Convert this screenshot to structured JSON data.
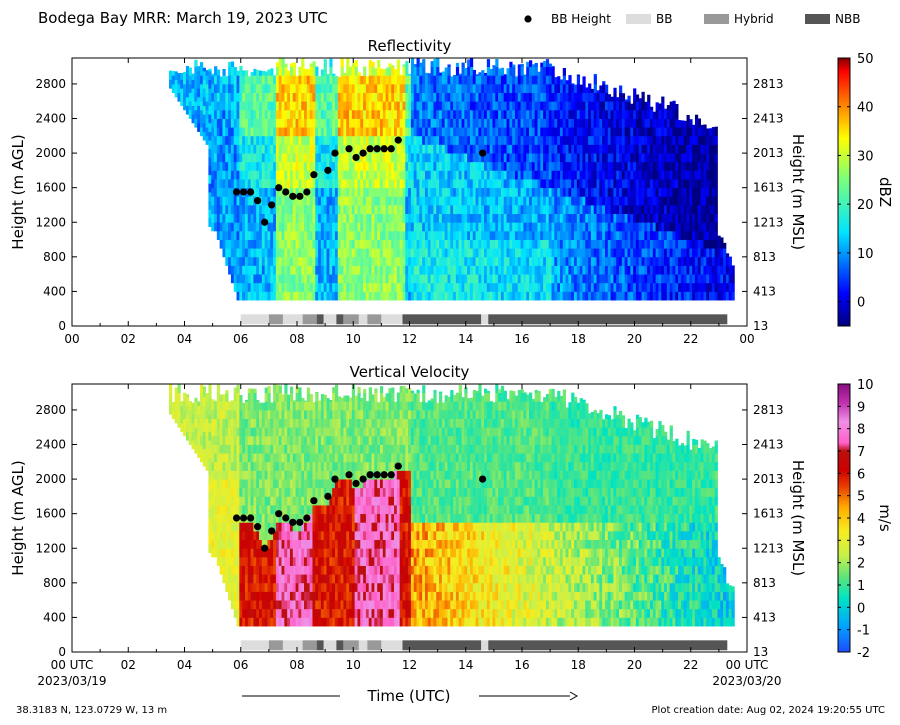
{
  "figure": {
    "title": "Bodega Bay MRR:  March 19, 2023 UTC",
    "location": "38.3183 N, 123.0729 W, 13 m",
    "creation": "Plot creation date: Aug 02, 2024 19:20:55 UTC",
    "xlabel": "Time (UTC)",
    "x_start_time": "00 UTC",
    "x_start_date": "2023/03/19",
    "x_end_time": "00 UTC",
    "x_end_date": "2023/03/20",
    "legend": [
      {
        "label": "BB Height",
        "kind": "marker",
        "color": "#000000"
      },
      {
        "label": "BB",
        "kind": "patch",
        "color": "#dddddd"
      },
      {
        "label": "Hybrid",
        "kind": "patch",
        "color": "#999999"
      },
      {
        "label": "NBB",
        "kind": "patch",
        "color": "#555555"
      }
    ]
  },
  "chart_data": [
    {
      "type": "heatmap",
      "title": "Reflectivity",
      "ylabel": "Height (m AGL)",
      "ylabel_right": "Height (m MSL)",
      "xlim": [
        0,
        24
      ],
      "ylim": [
        0,
        3100
      ],
      "xticks": [
        "00",
        "02",
        "04",
        "06",
        "08",
        "10",
        "12",
        "14",
        "16",
        "18",
        "20",
        "22",
        "00"
      ],
      "yticks": [
        0,
        400,
        800,
        1200,
        1600,
        2000,
        2400,
        2800
      ],
      "yticks_right": [
        "13",
        "413",
        "813",
        "1213",
        "1613",
        "2013",
        "2413",
        "2813"
      ],
      "colorbar": {
        "label": "dBZ",
        "range": [
          -5,
          50
        ],
        "ticks": [
          0,
          10,
          20,
          30,
          40,
          50
        ],
        "colormap": "jet"
      }
    },
    {
      "type": "heatmap",
      "title": "Vertical Velocity",
      "ylabel": "Height (m AGL)",
      "ylabel_right": "Height (m MSL)",
      "xlim": [
        0,
        24
      ],
      "ylim": [
        0,
        3100
      ],
      "xticks": [
        "",
        "02",
        "04",
        "06",
        "08",
        "10",
        "12",
        "14",
        "16",
        "18",
        "20",
        "22",
        ""
      ],
      "yticks": [
        0,
        400,
        800,
        1200,
        1600,
        2000,
        2400,
        2800
      ],
      "yticks_right": [
        "13",
        "413",
        "813",
        "1213",
        "1613",
        "2013",
        "2413",
        "2813"
      ],
      "colorbar": {
        "label": "m/s",
        "range": [
          -2,
          10
        ],
        "ticks": [
          -2,
          -1,
          0,
          1,
          2,
          3,
          4,
          5,
          6,
          7,
          8,
          9,
          10
        ],
        "colormap": "velocity"
      }
    }
  ],
  "bb_heights": {
    "x": [
      5.85,
      6.1,
      6.35,
      6.6,
      6.85,
      7.1,
      7.35,
      7.6,
      7.85,
      8.1,
      8.35,
      8.6,
      9.1,
      9.35,
      9.85,
      10.1,
      10.35,
      10.6,
      10.85,
      11.1,
      11.35,
      11.6,
      14.6
    ],
    "y": [
      1550,
      1550,
      1550,
      1450,
      1200,
      1400,
      1600,
      1550,
      1500,
      1500,
      1550,
      1750,
      1800,
      2000,
      2050,
      1950,
      2000,
      2050,
      2050,
      2050,
      2050,
      2150,
      2000
    ]
  },
  "bb_classification": [
    {
      "start": 6.0,
      "end": 7.0,
      "class": "BB"
    },
    {
      "start": 7.0,
      "end": 7.5,
      "class": "Hybrid"
    },
    {
      "start": 7.5,
      "end": 8.2,
      "class": "BB"
    },
    {
      "start": 8.2,
      "end": 8.7,
      "class": "Hybrid"
    },
    {
      "start": 8.7,
      "end": 8.95,
      "class": "NBB"
    },
    {
      "start": 8.95,
      "end": 9.4,
      "class": "BB"
    },
    {
      "start": 9.4,
      "end": 9.65,
      "class": "NBB"
    },
    {
      "start": 9.65,
      "end": 10.2,
      "class": "Hybrid"
    },
    {
      "start": 10.2,
      "end": 10.5,
      "class": "BB"
    },
    {
      "start": 10.5,
      "end": 11.0,
      "class": "Hybrid"
    },
    {
      "start": 11.0,
      "end": 11.75,
      "class": "BB"
    },
    {
      "start": 11.75,
      "end": 14.55,
      "class": "NBB"
    },
    {
      "start": 14.55,
      "end": 14.8,
      "class": "BB"
    },
    {
      "start": 14.8,
      "end": 23.3,
      "class": "NBB"
    }
  ]
}
